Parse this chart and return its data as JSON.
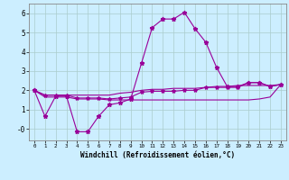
{
  "xlabel": "Windchill (Refroidissement éolien,°C)",
  "bg_color": "#cceeff",
  "grid_color": "#aacccc",
  "line_color": "#990099",
  "x_ticks": [
    0,
    1,
    2,
    3,
    4,
    5,
    6,
    7,
    8,
    9,
    10,
    11,
    12,
    13,
    14,
    15,
    16,
    17,
    18,
    19,
    20,
    21,
    22,
    23
  ],
  "ylim": [
    -0.6,
    6.5
  ],
  "xlim": [
    -0.5,
    23.5
  ],
  "line1_x": [
    0,
    1,
    2,
    3,
    4,
    5,
    6,
    7,
    8,
    9,
    10,
    11,
    12,
    13,
    14,
    15,
    16,
    17,
    18,
    19,
    20,
    21,
    22,
    23
  ],
  "line1_y": [
    2.0,
    0.65,
    1.7,
    1.7,
    -0.15,
    -0.15,
    0.65,
    1.25,
    1.35,
    1.55,
    3.4,
    5.25,
    5.7,
    5.7,
    6.05,
    5.2,
    4.5,
    3.2,
    2.2,
    2.2,
    2.4,
    2.4,
    2.2,
    2.3
  ],
  "line2_x": [
    0,
    1,
    2,
    3,
    4,
    5,
    6,
    7,
    8,
    9,
    10,
    11,
    12,
    13,
    14,
    15,
    16,
    17,
    18,
    19,
    20,
    21,
    22,
    23
  ],
  "line2_y": [
    2.0,
    1.75,
    1.75,
    1.75,
    1.75,
    1.75,
    1.75,
    1.75,
    1.85,
    1.9,
    2.0,
    2.05,
    2.05,
    2.1,
    2.1,
    2.1,
    2.15,
    2.2,
    2.2,
    2.25,
    2.25,
    2.25,
    2.25,
    2.3
  ],
  "line3_x": [
    0,
    1,
    2,
    3,
    4,
    5,
    6,
    7,
    8,
    9,
    10,
    11,
    12,
    13,
    14,
    15,
    16,
    17,
    18,
    19,
    20,
    21,
    22,
    23
  ],
  "line3_y": [
    2.0,
    1.65,
    1.65,
    1.65,
    1.55,
    1.55,
    1.55,
    1.5,
    1.5,
    1.5,
    1.5,
    1.5,
    1.5,
    1.5,
    1.5,
    1.5,
    1.5,
    1.5,
    1.5,
    1.5,
    1.5,
    1.55,
    1.65,
    2.3
  ],
  "line4_x": [
    0,
    1,
    2,
    3,
    4,
    5,
    6,
    7,
    8,
    9,
    10,
    11,
    12,
    13,
    14,
    15,
    16,
    17,
    18,
    19,
    20,
    21,
    22,
    23
  ],
  "line4_y": [
    2.0,
    1.75,
    1.75,
    1.75,
    1.6,
    1.6,
    1.6,
    1.55,
    1.6,
    1.65,
    1.9,
    1.95,
    1.95,
    1.95,
    2.0,
    2.0,
    2.15,
    2.15,
    2.15,
    2.15,
    2.4,
    2.4,
    2.2,
    2.3
  ],
  "yticks": [
    0,
    1,
    2,
    3,
    4,
    5,
    6
  ],
  "ytick_labels": [
    "-0",
    "1",
    "2",
    "3",
    "4",
    "5",
    "6"
  ]
}
